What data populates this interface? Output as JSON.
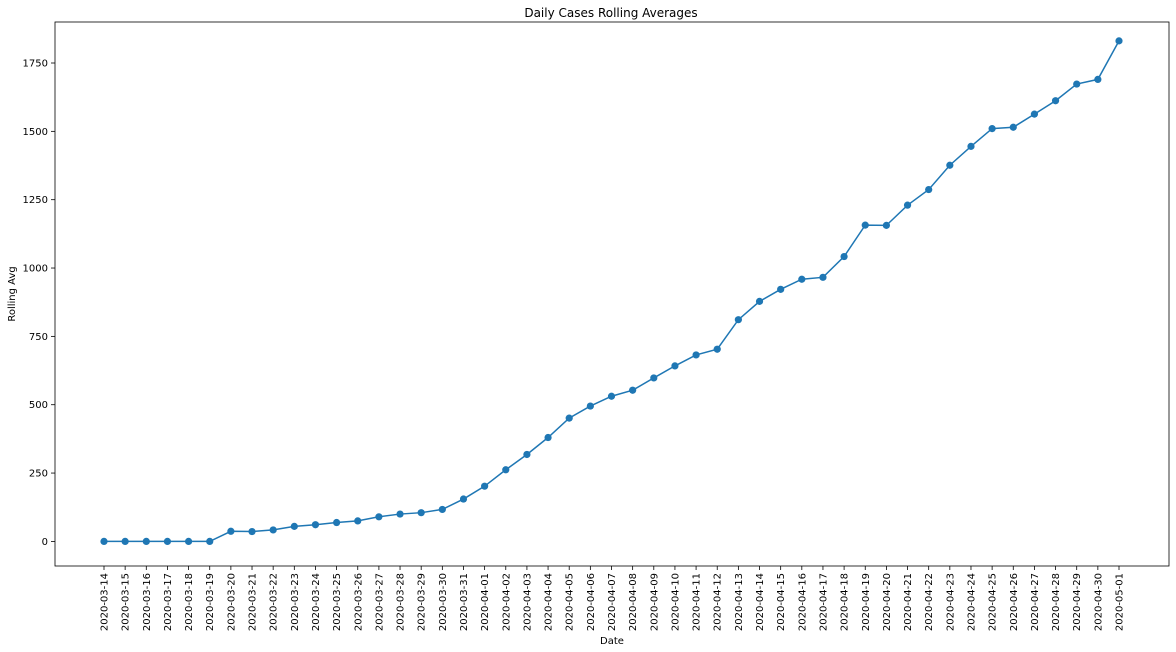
{
  "chart_data": {
    "type": "line",
    "title": "Daily Cases Rolling Averages",
    "xlabel": "Date",
    "ylabel": "Rolling Avg",
    "ylim": [
      -90,
      1900
    ],
    "yticks": [
      0,
      250,
      500,
      750,
      1000,
      1250,
      1500,
      1750
    ],
    "grid": false,
    "legend": "none",
    "color": "#1f77b4",
    "x": [
      "2020-03-14",
      "2020-03-15",
      "2020-03-16",
      "2020-03-17",
      "2020-03-18",
      "2020-03-19",
      "2020-03-20",
      "2020-03-21",
      "2020-03-22",
      "2020-03-23",
      "2020-03-24",
      "2020-03-25",
      "2020-03-26",
      "2020-03-27",
      "2020-03-28",
      "2020-03-29",
      "2020-03-30",
      "2020-03-31",
      "2020-04-01",
      "2020-04-02",
      "2020-04-03",
      "2020-04-04",
      "2020-04-05",
      "2020-04-06",
      "2020-04-07",
      "2020-04-08",
      "2020-04-09",
      "2020-04-10",
      "2020-04-11",
      "2020-04-12",
      "2020-04-13",
      "2020-04-14",
      "2020-04-15",
      "2020-04-16",
      "2020-04-17",
      "2020-04-18",
      "2020-04-19",
      "2020-04-20",
      "2020-04-21",
      "2020-04-22",
      "2020-04-23",
      "2020-04-24",
      "2020-04-25",
      "2020-04-26",
      "2020-04-27",
      "2020-04-28",
      "2020-04-29",
      "2020-04-30",
      "2020-05-01"
    ],
    "values": [
      0,
      0,
      0,
      0,
      0,
      0,
      37,
      36,
      42,
      55,
      61,
      69,
      75,
      90,
      100,
      105,
      117,
      155,
      202,
      262,
      318,
      380,
      451,
      495,
      531,
      553,
      598,
      642,
      682,
      703,
      811,
      878,
      922,
      959,
      966,
      1042,
      1157,
      1156,
      1230,
      1287,
      1376,
      1445,
      1510,
      1515,
      1563,
      1612,
      1673,
      1690,
      1831
    ]
  }
}
